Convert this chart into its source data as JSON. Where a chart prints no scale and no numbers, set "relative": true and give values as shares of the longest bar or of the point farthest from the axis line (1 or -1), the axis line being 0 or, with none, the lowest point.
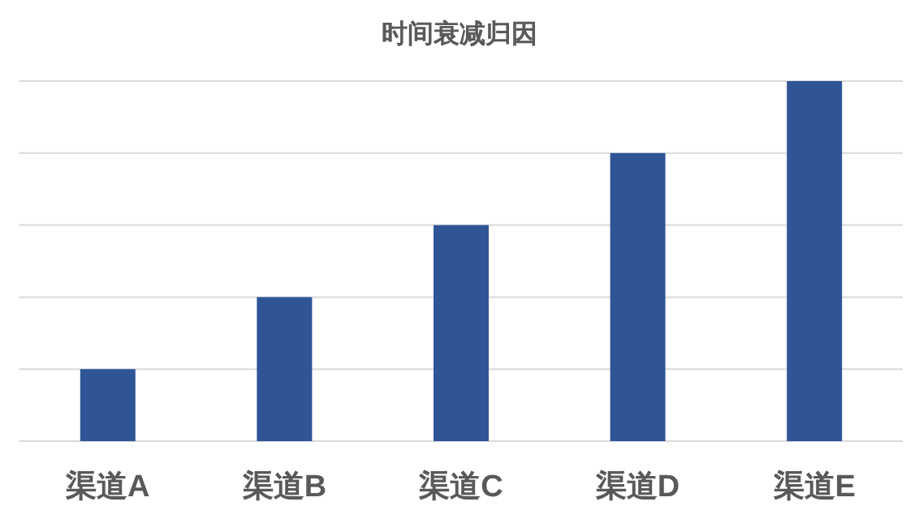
{
  "chart_data": {
    "type": "bar",
    "title": "时间衰减归因",
    "categories": [
      "渠道A",
      "渠道B",
      "渠道C",
      "渠道D",
      "渠道E"
    ],
    "values": [
      0.2,
      0.4,
      0.6,
      0.8,
      1
    ],
    "color": "#2f5597",
    "relative": true,
    "grid": "y"
  }
}
